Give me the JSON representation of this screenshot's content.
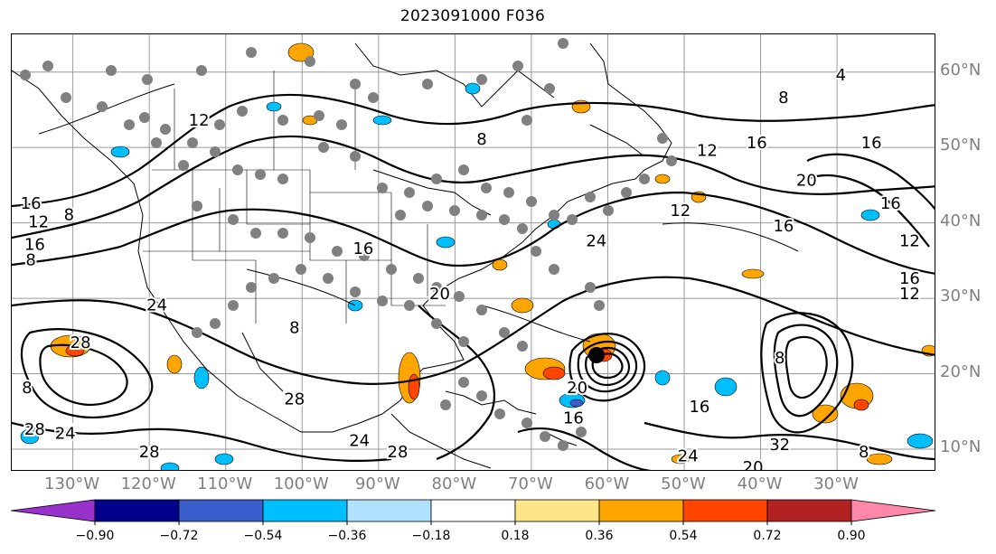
{
  "chart_data": {
    "type": "map",
    "title": "2023091000 F036",
    "lat_labels": [
      "60°N",
      "50°N",
      "40°N",
      "30°N",
      "20°N",
      "10°N"
    ],
    "lon_labels": [
      "130°W",
      "120°W",
      "110°W",
      "100°W",
      "90°W",
      "80°W",
      "70°W",
      "60°W",
      "50°W",
      "40°W",
      "30°W"
    ],
    "lat_range": [
      7,
      65
    ],
    "lon_range": [
      -138,
      -17
    ],
    "grid": true,
    "contour_labels": [
      {
        "text": "16",
        "lon": -135.5,
        "lat": 42.5
      },
      {
        "text": "12",
        "lon": -134.5,
        "lat": 40
      },
      {
        "text": "16",
        "lon": -135,
        "lat": 37
      },
      {
        "text": "8",
        "lon": -135.5,
        "lat": 35
      },
      {
        "text": "8",
        "lon": -130.5,
        "lat": 41
      },
      {
        "text": "24",
        "lon": -119,
        "lat": 29
      },
      {
        "text": "28",
        "lon": -129,
        "lat": 24
      },
      {
        "text": "8",
        "lon": -136,
        "lat": 18
      },
      {
        "text": "28",
        "lon": -135,
        "lat": 12.5
      },
      {
        "text": "24",
        "lon": -131,
        "lat": 12
      },
      {
        "text": "28",
        "lon": -120,
        "lat": 9.5
      },
      {
        "text": "28",
        "lon": -101,
        "lat": 16.5
      },
      {
        "text": "24",
        "lon": -92.5,
        "lat": 11
      },
      {
        "text": "28",
        "lon": -87.5,
        "lat": 9.5
      },
      {
        "text": "16",
        "lon": -92,
        "lat": 36.5
      },
      {
        "text": "20",
        "lon": -82,
        "lat": 30.5
      },
      {
        "text": "8",
        "lon": -101,
        "lat": 26
      },
      {
        "text": "12",
        "lon": -113.5,
        "lat": 53.5
      },
      {
        "text": "8",
        "lon": -76.5,
        "lat": 51
      },
      {
        "text": "24",
        "lon": -61.5,
        "lat": 37.5
      },
      {
        "text": "12",
        "lon": -50.5,
        "lat": 41.5
      },
      {
        "text": "12",
        "lon": -47,
        "lat": 49.5
      },
      {
        "text": "16",
        "lon": -40.5,
        "lat": 50.5
      },
      {
        "text": "20",
        "lon": -34,
        "lat": 45.5
      },
      {
        "text": "16",
        "lon": -25.5,
        "lat": 50.5
      },
      {
        "text": "16",
        "lon": -23,
        "lat": 42.5
      },
      {
        "text": "12",
        "lon": -20.5,
        "lat": 37.5
      },
      {
        "text": "16",
        "lon": -20.5,
        "lat": 32.5
      },
      {
        "text": "12",
        "lon": -20.5,
        "lat": 30.5
      },
      {
        "text": "16",
        "lon": -37,
        "lat": 39.5
      },
      {
        "text": "8",
        "lon": -37.5,
        "lat": 22
      },
      {
        "text": "32",
        "lon": -37.5,
        "lat": 10.5
      },
      {
        "text": "16",
        "lon": -48,
        "lat": 15.5
      },
      {
        "text": "20",
        "lon": -64,
        "lat": 18
      },
      {
        "text": "16",
        "lon": -64.5,
        "lat": 14
      },
      {
        "text": "4",
        "lon": -29.5,
        "lat": 59.5
      },
      {
        "text": "8",
        "lon": -37,
        "lat": 56.5
      },
      {
        "text": "8",
        "lon": -26.5,
        "lat": 9.5
      },
      {
        "text": "24",
        "lon": -49.5,
        "lat": 9
      },
      {
        "text": "20",
        "lon": -41,
        "lat": 7.5
      }
    ],
    "colorbar": {
      "ticks": [
        "−0.90",
        "−0.72",
        "−0.54",
        "−0.36",
        "−0.18",
        "0.18",
        "0.36",
        "0.54",
        "0.72",
        "0.90"
      ],
      "bounds": [
        -0.9,
        -0.72,
        -0.54,
        -0.36,
        -0.18,
        0.18,
        0.36,
        0.54,
        0.72,
        0.9
      ],
      "colors": [
        "#9932cc",
        "#00008b",
        "#3a5fcd",
        "#00bfff",
        "#b0e2ff",
        "#ffffff",
        "#fde68a",
        "#ffa500",
        "#ff4500",
        "#b22222",
        "#ff88aa"
      ],
      "extend": "both"
    }
  }
}
